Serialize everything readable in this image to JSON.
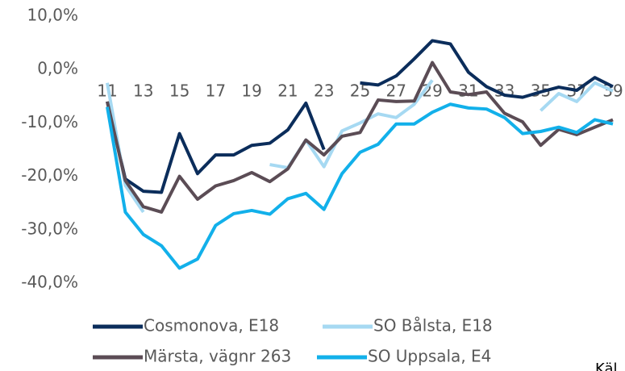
{
  "chart_data": {
    "type": "line",
    "categories": [
      "11",
      null,
      "13",
      null,
      "15",
      null,
      "17",
      null,
      "19",
      null,
      "21",
      null,
      "23",
      null,
      "25",
      null,
      "27",
      null,
      "29",
      null,
      "31",
      null,
      "33",
      null,
      "35",
      null,
      "37",
      null,
      "39"
    ],
    "ylim": [
      -40,
      10
    ],
    "yticks": [
      {
        "value": -40,
        "label": "-40,0%"
      },
      {
        "value": -30,
        "label": "-30,0%"
      },
      {
        "value": -20,
        "label": "-20,0%"
      },
      {
        "value": -10,
        "label": "-10,0%"
      },
      {
        "value": 0,
        "label": "0,0%"
      },
      {
        "value": 10,
        "label": "10,0%"
      }
    ],
    "source": "Käl",
    "series": [
      {
        "name": "Cosmonova, E18",
        "color": "#0b2d5b",
        "values": [
          -6,
          -20.5,
          -22.8,
          -23,
          -12,
          -19.5,
          -16,
          -16,
          -14.2,
          -13.8,
          -11.3,
          -6.3,
          -15,
          null,
          -2.5,
          -2.9,
          -1.2,
          2,
          5.4,
          4.8,
          -0.5,
          -3.2,
          -4.8,
          -5.2,
          -4.2,
          -3.3,
          -3.9,
          -1.5,
          -3.2
        ]
      },
      {
        "name": "SO Bålsta, E18",
        "color": "#a6d9f2",
        "values": [
          -2.5,
          -21.7,
          -26.7,
          null,
          null,
          null,
          null,
          null,
          null,
          -17.8,
          -18.4,
          -13.2,
          -18.2,
          -11.5,
          -10,
          -8.3,
          -9,
          -6.5,
          -2,
          null,
          null,
          null,
          null,
          null,
          -7.7,
          -4.5,
          -6,
          -2.5,
          -4
        ]
      },
      {
        "name": "Märsta, vägnr 263",
        "color": "#5b4c55",
        "values": [
          -6,
          -20.8,
          -25.7,
          -26.7,
          -20,
          -24.3,
          -21.8,
          -20.8,
          -19.3,
          -21,
          -18.6,
          -13.2,
          -16,
          -12.5,
          -11.8,
          -5.7,
          -6,
          -5.9,
          1.3,
          -4.2,
          -4.7,
          -4.2,
          -8.2,
          -9.8,
          -14.2,
          -11.2,
          -12.2,
          -10.8,
          -9.4
        ]
      },
      {
        "name": "SO Uppsala, E4",
        "color": "#12b0ea",
        "values": [
          -7,
          -26.7,
          -30.9,
          -33,
          -37.2,
          -35.5,
          -29.2,
          -27,
          -26.4,
          -27.1,
          -24.2,
          -23.2,
          -26.2,
          -19.5,
          -15.5,
          -14,
          -10.2,
          -10.2,
          -8,
          -6.5,
          -7.2,
          -7.4,
          -9,
          -12,
          -11.6,
          -10.8,
          -11.8,
          -9.4,
          -10.2
        ]
      }
    ]
  }
}
